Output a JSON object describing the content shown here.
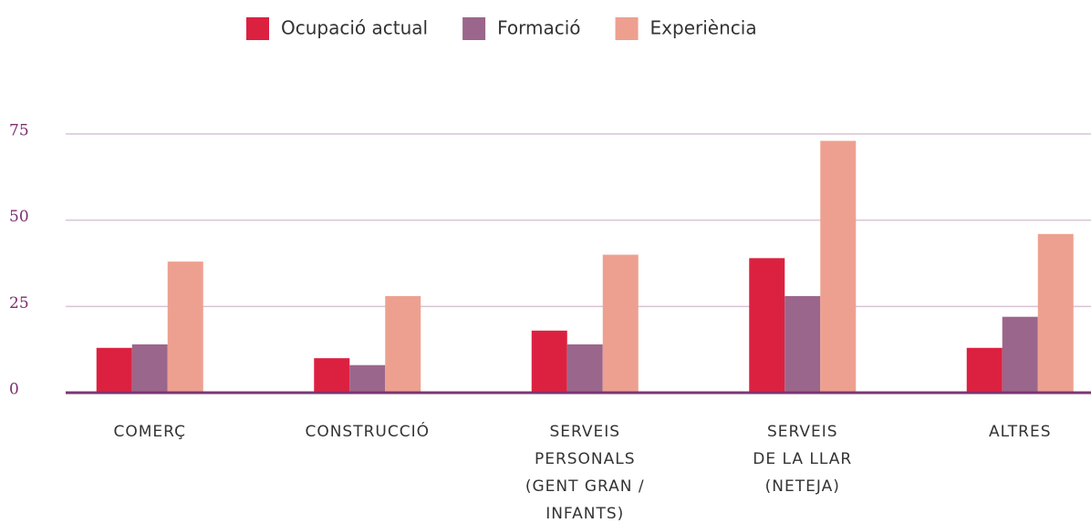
{
  "chart_data": {
    "type": "bar",
    "categories": [
      [
        "COMERÇ"
      ],
      [
        "CONSTRUCCIÓ"
      ],
      [
        "SERVEIS",
        "PERSONALS",
        "(GENT GRAN /",
        "INFANTS)"
      ],
      [
        "SERVEIS",
        "DE LA LLAR",
        "(NETEJA)"
      ],
      [
        "ALTRES"
      ]
    ],
    "series": [
      {
        "name": "Ocupació actual",
        "color": "#dc2140",
        "values": [
          13,
          10,
          18,
          39,
          13
        ]
      },
      {
        "name": "Formació",
        "color": "#9b668b",
        "values": [
          14,
          8,
          14,
          28,
          22
        ]
      },
      {
        "name": "Experiència",
        "color": "#eea090",
        "values": [
          38,
          28,
          40,
          73,
          46
        ]
      }
    ],
    "ylim": [
      0,
      75
    ],
    "yticks": [
      0,
      25,
      50,
      75
    ],
    "grid": true,
    "legend": "top"
  }
}
